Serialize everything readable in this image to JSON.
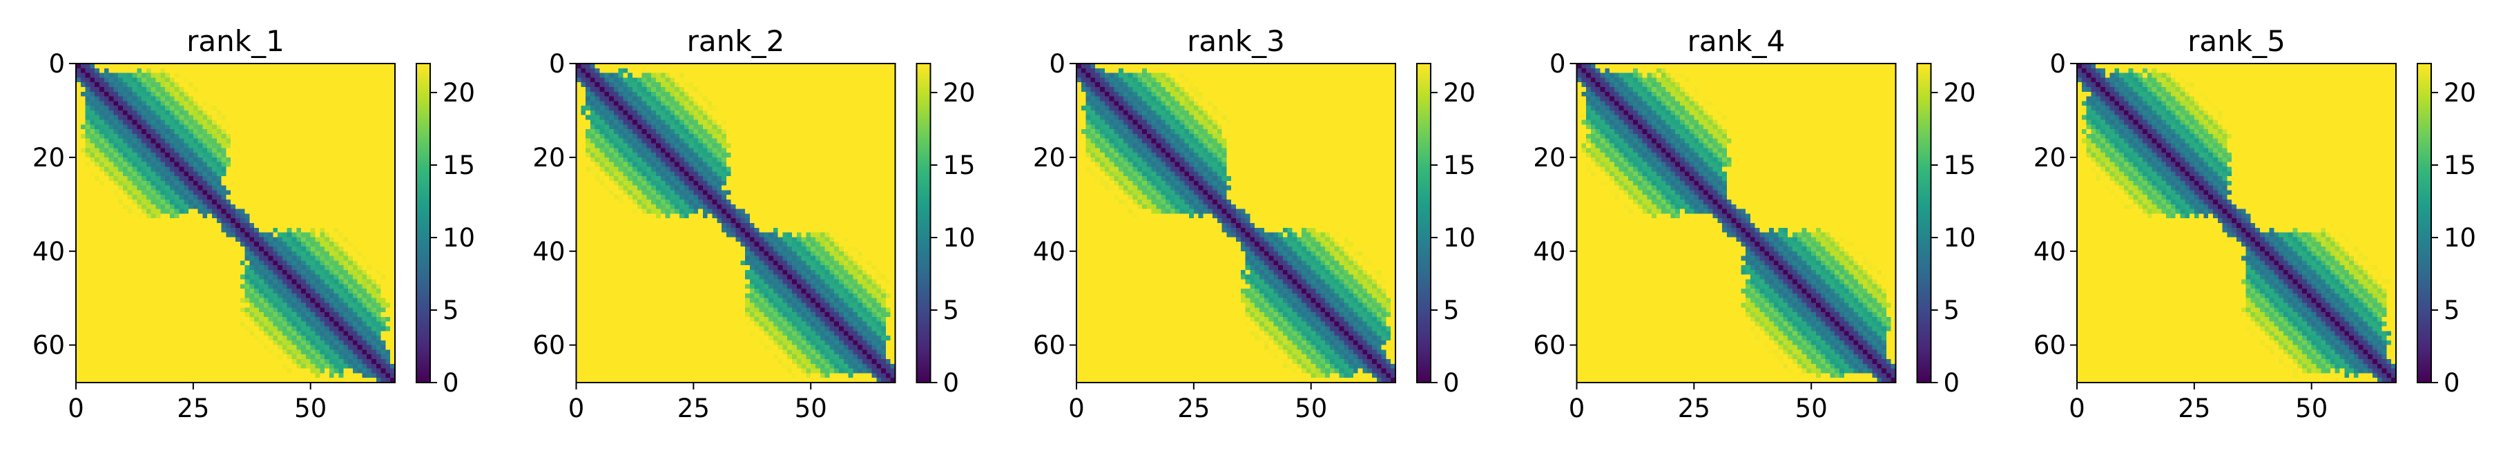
{
  "chart_data": [
    {
      "type": "heatmap",
      "title": "rank_1",
      "x_ticks": [
        0,
        25,
        50
      ],
      "y_ticks": [
        0,
        20,
        40,
        60
      ],
      "xlim": [
        0,
        68
      ],
      "ylim": [
        68,
        0
      ],
      "colorbar": {
        "ticks": [
          0,
          5,
          10,
          15,
          20
        ],
        "range": [
          0,
          22
        ],
        "colormap": "viridis"
      },
      "grid": false
    },
    {
      "type": "heatmap",
      "title": "rank_2",
      "x_ticks": [
        0,
        25,
        50
      ],
      "y_ticks": [
        0,
        20,
        40,
        60
      ],
      "xlim": [
        0,
        68
      ],
      "ylim": [
        68,
        0
      ],
      "colorbar": {
        "ticks": [
          0,
          5,
          10,
          15,
          20
        ],
        "range": [
          0,
          22
        ],
        "colormap": "viridis"
      },
      "grid": false
    },
    {
      "type": "heatmap",
      "title": "rank_3",
      "x_ticks": [
        0,
        25,
        50
      ],
      "y_ticks": [
        0,
        20,
        40,
        60
      ],
      "xlim": [
        0,
        68
      ],
      "ylim": [
        68,
        0
      ],
      "colorbar": {
        "ticks": [
          0,
          5,
          10,
          15,
          20
        ],
        "range": [
          0,
          22
        ],
        "colormap": "viridis"
      },
      "grid": false
    },
    {
      "type": "heatmap",
      "title": "rank_4",
      "x_ticks": [
        0,
        25,
        50
      ],
      "y_ticks": [
        0,
        20,
        40,
        60
      ],
      "xlim": [
        0,
        68
      ],
      "ylim": [
        68,
        0
      ],
      "colorbar": {
        "ticks": [
          0,
          5,
          10,
          15,
          20
        ],
        "range": [
          0,
          22
        ],
        "colormap": "viridis"
      },
      "grid": false
    },
    {
      "type": "heatmap",
      "title": "rank_5",
      "x_ticks": [
        0,
        25,
        50
      ],
      "y_ticks": [
        0,
        20,
        40,
        60
      ],
      "xlim": [
        0,
        68
      ],
      "ylim": [
        68,
        0
      ],
      "colorbar": {
        "ticks": [
          0,
          5,
          10,
          15,
          20
        ],
        "range": [
          0,
          22
        ],
        "colormap": "viridis"
      },
      "grid": false
    }
  ],
  "matrix_model": {
    "size": 68,
    "domains": [
      [
        0,
        33
      ],
      [
        34,
        67
      ]
    ],
    "max_value": 22,
    "tail_cells": 2
  }
}
